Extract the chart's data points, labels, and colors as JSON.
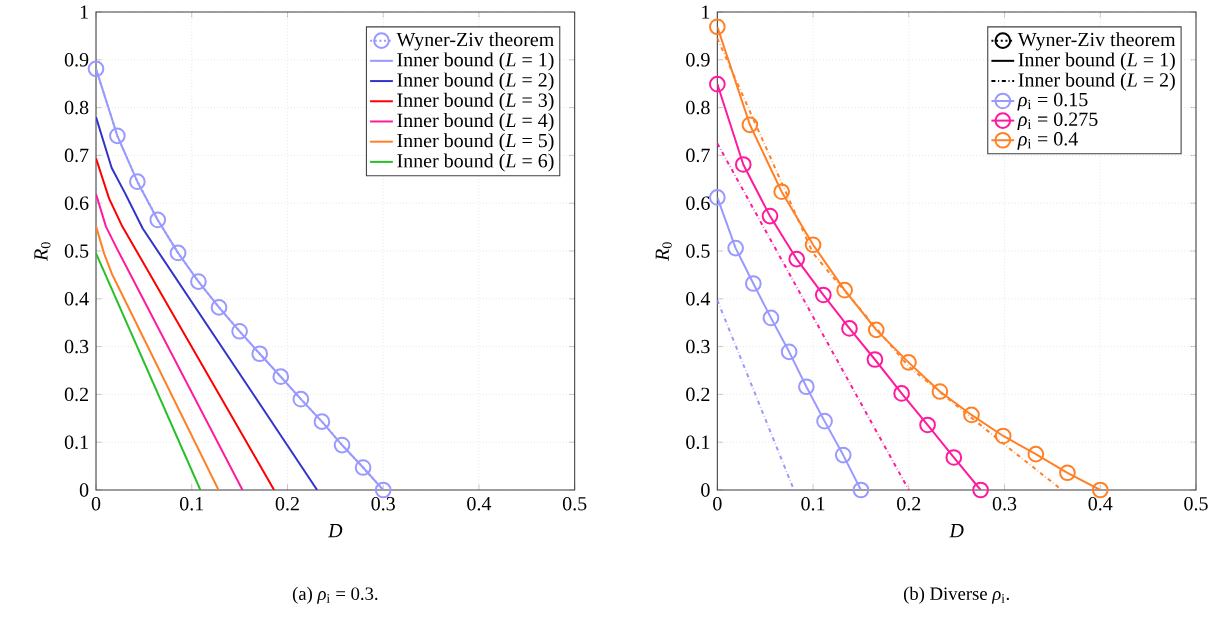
{
  "chart_data": [
    {
      "type": "line",
      "xlabel": "*D*",
      "ylabel": "*R*$_{0}$",
      "xlim": [
        0,
        0.5
      ],
      "ylim": [
        0,
        1
      ],
      "xticks": [
        0,
        0.1,
        0.2,
        0.3,
        0.4,
        0.5
      ],
      "yticks": [
        0,
        0.1,
        0.2,
        0.3,
        0.4,
        0.5,
        0.6,
        0.7,
        0.8,
        0.9,
        1
      ],
      "grid": true,
      "legend": "top right",
      "annotations": [
        "(a) *ρ*$_{i}$ = 0.3."
      ],
      "series": [
        {
          "name": "Wyner-Ziv theorem",
          "color": "#9999ff",
          "marker": "circle",
          "line_style": "dotted",
          "x": [
            0,
            0.0223,
            0.0432,
            0.0645,
            0.0857,
            0.107,
            0.1285,
            0.15,
            0.171,
            0.193,
            0.214,
            0.236,
            0.257,
            0.279,
            0.3
          ],
          "values": [
            0.881,
            0.741,
            0.645,
            0.565,
            0.496,
            0.436,
            0.382,
            0.332,
            0.285,
            0.237,
            0.19,
            0.143,
            0.094,
            0.047,
            0
          ]
        },
        {
          "name": "Inner bound (*L* = 1)",
          "color": "#9999ff",
          "marker": "none",
          "line_style": "solid",
          "x": [
            0,
            0.0223,
            0.0432,
            0.0645,
            0.0857,
            0.107,
            0.1285,
            0.15,
            0.171,
            0.193,
            0.214,
            0.236,
            0.257,
            0.279,
            0.3
          ],
          "values": [
            0.881,
            0.741,
            0.645,
            0.565,
            0.496,
            0.436,
            0.382,
            0.332,
            0.285,
            0.237,
            0.19,
            0.143,
            0.094,
            0.047,
            0
          ]
        },
        {
          "name": "Inner bound (*L* = 2)",
          "color": "#3333cc",
          "marker": "none",
          "line_style": "solid",
          "x": [
            0,
            0.0163,
            0.0303,
            0.0488,
            0.231
          ],
          "values": [
            0.78,
            0.674,
            0.621,
            0.547,
            0
          ]
        },
        {
          "name": "Inner bound (*L* = 3)",
          "color": "#ff0000",
          "marker": "none",
          "line_style": "solid",
          "x": [
            0,
            0.0136,
            0.0268,
            0.186
          ],
          "values": [
            0.694,
            0.61,
            0.554,
            0
          ]
        },
        {
          "name": "Inner bound (*L* = 4)",
          "color": "#ff1a9e",
          "marker": "none",
          "line_style": "solid",
          "x": [
            0,
            0.0104,
            0.0216,
            0.153
          ],
          "values": [
            0.619,
            0.551,
            0.506,
            0
          ]
        },
        {
          "name": "Inner bound (*L* = 5)",
          "color": "#ff8026",
          "marker": "none",
          "line_style": "solid",
          "x": [
            0,
            0.0084,
            0.0164,
            0.128
          ],
          "values": [
            0.552,
            0.495,
            0.453,
            0
          ]
        },
        {
          "name": "Inner bound (*L* = 6)",
          "color": "#26bf26",
          "marker": "none",
          "line_style": "solid",
          "x": [
            0,
            0.109
          ],
          "values": [
            0.495,
            0
          ]
        }
      ]
    },
    {
      "type": "line",
      "xlabel": "*D*",
      "ylabel": "*R*$_{0}$",
      "xlim": [
        0,
        0.5
      ],
      "ylim": [
        0,
        1
      ],
      "xticks": [
        0,
        0.1,
        0.2,
        0.3,
        0.4,
        0.5
      ],
      "yticks": [
        0,
        0.1,
        0.2,
        0.3,
        0.4,
        0.5,
        0.6,
        0.7,
        0.8,
        0.9,
        1
      ],
      "grid": true,
      "legend": "top right",
      "annotations": [
        "(b) Diverse *ρ*$_{i}$."
      ],
      "series": [
        {
          "name": "Wyner-Ziv theorem",
          "color": "#000000",
          "marker": "circle",
          "line_style": "dotted"
        },
        {
          "name": "Inner bound (*L* = 1)",
          "color": "#000000",
          "marker": "none",
          "line_style": "solid"
        },
        {
          "name": "Inner bound (*L* = 2)",
          "color": "#000000",
          "marker": "none",
          "line_style": "dashdot"
        },
        {
          "name": "*ρ*$_{i}$ = 0.15",
          "color": "#9999ff",
          "marker": "circle",
          "line_style": "solid",
          "x": [
            0,
            0.0191,
            0.0376,
            0.056,
            0.075,
            0.093,
            0.112,
            0.1315,
            0.15
          ],
          "values": [
            0.612,
            0.506,
            0.432,
            0.36,
            0.289,
            0.216,
            0.144,
            0.073,
            0
          ]
        },
        {
          "name": "*ρ*$_{i}$ = 0.275",
          "color": "#ff1a9e",
          "marker": "circle",
          "line_style": "solid",
          "x": [
            0,
            0.0271,
            0.055,
            0.0829,
            0.1107,
            0.138,
            0.1646,
            0.1925,
            0.2196,
            0.247,
            0.275
          ],
          "values": [
            0.849,
            0.681,
            0.573,
            0.483,
            0.408,
            0.338,
            0.273,
            0.202,
            0.136,
            0.068,
            0
          ]
        },
        {
          "name": "*ρ*$_{i}$ = 0.4",
          "color": "#ff8026",
          "marker": "circle",
          "line_style": "solid",
          "x": [
            0,
            0.034,
            0.0672,
            0.1,
            0.133,
            0.166,
            0.1997,
            0.2325,
            0.2655,
            0.2986,
            0.3327,
            0.3657,
            0.4
          ],
          "values": [
            0.969,
            0.764,
            0.624,
            0.513,
            0.418,
            0.335,
            0.267,
            0.206,
            0.157,
            0.113,
            0.075,
            0.036,
            0
          ]
        },
        {
          "color": "#9999ff",
          "marker": "none",
          "line_style": "dashdot",
          "x": [
            0,
            0.08
          ],
          "values": [
            0.397,
            0
          ]
        },
        {
          "color": "#ff1a9e",
          "marker": "none",
          "line_style": "dashdot",
          "x": [
            0,
            0.2
          ],
          "values": [
            0.725,
            0
          ]
        },
        {
          "color": "#ff8026",
          "marker": "none",
          "line_style": "dashdot",
          "x": [
            0,
            0.1,
            0.2,
            0.3,
            0.36
          ],
          "values": [
            0.945,
            0.495,
            0.258,
            0.095,
            0
          ]
        }
      ]
    }
  ]
}
